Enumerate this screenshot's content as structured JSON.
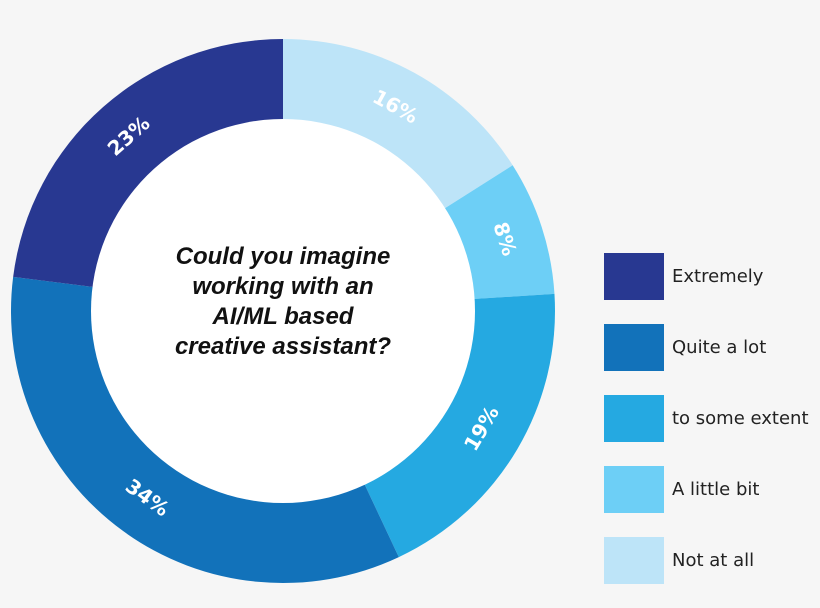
{
  "chart_data": {
    "type": "pie",
    "subtype": "donut",
    "title": "Could you imagine working with an AI/ML based creative assistant?",
    "categories": [
      "Not at all",
      "A little bit",
      "to some extent",
      "Quite a lot",
      "Extremely"
    ],
    "values": [
      16,
      8,
      19,
      34,
      23
    ],
    "unit": "%",
    "colors": [
      "#bde4f8",
      "#6dcff6",
      "#25a9e1",
      "#1272ba",
      "#283891"
    ],
    "start_angle_deg": 0,
    "direction": "clockwise",
    "legend_position": "right"
  },
  "center": {
    "lines": [
      "Could you imagine",
      "working with an",
      "AI/ML based",
      "creative assistant?"
    ]
  },
  "legend": {
    "items": [
      {
        "label": "Extremely",
        "color": "#283891"
      },
      {
        "label": "Quite a lot",
        "color": "#1272ba"
      },
      {
        "label": "to some extent",
        "color": "#25a9e1"
      },
      {
        "label": "A little bit",
        "color": "#6dcff6"
      },
      {
        "label": "Not at all",
        "color": "#bde4f8"
      }
    ]
  },
  "style": {
    "background": "#f6f6f6",
    "hole": "#ffffff"
  }
}
